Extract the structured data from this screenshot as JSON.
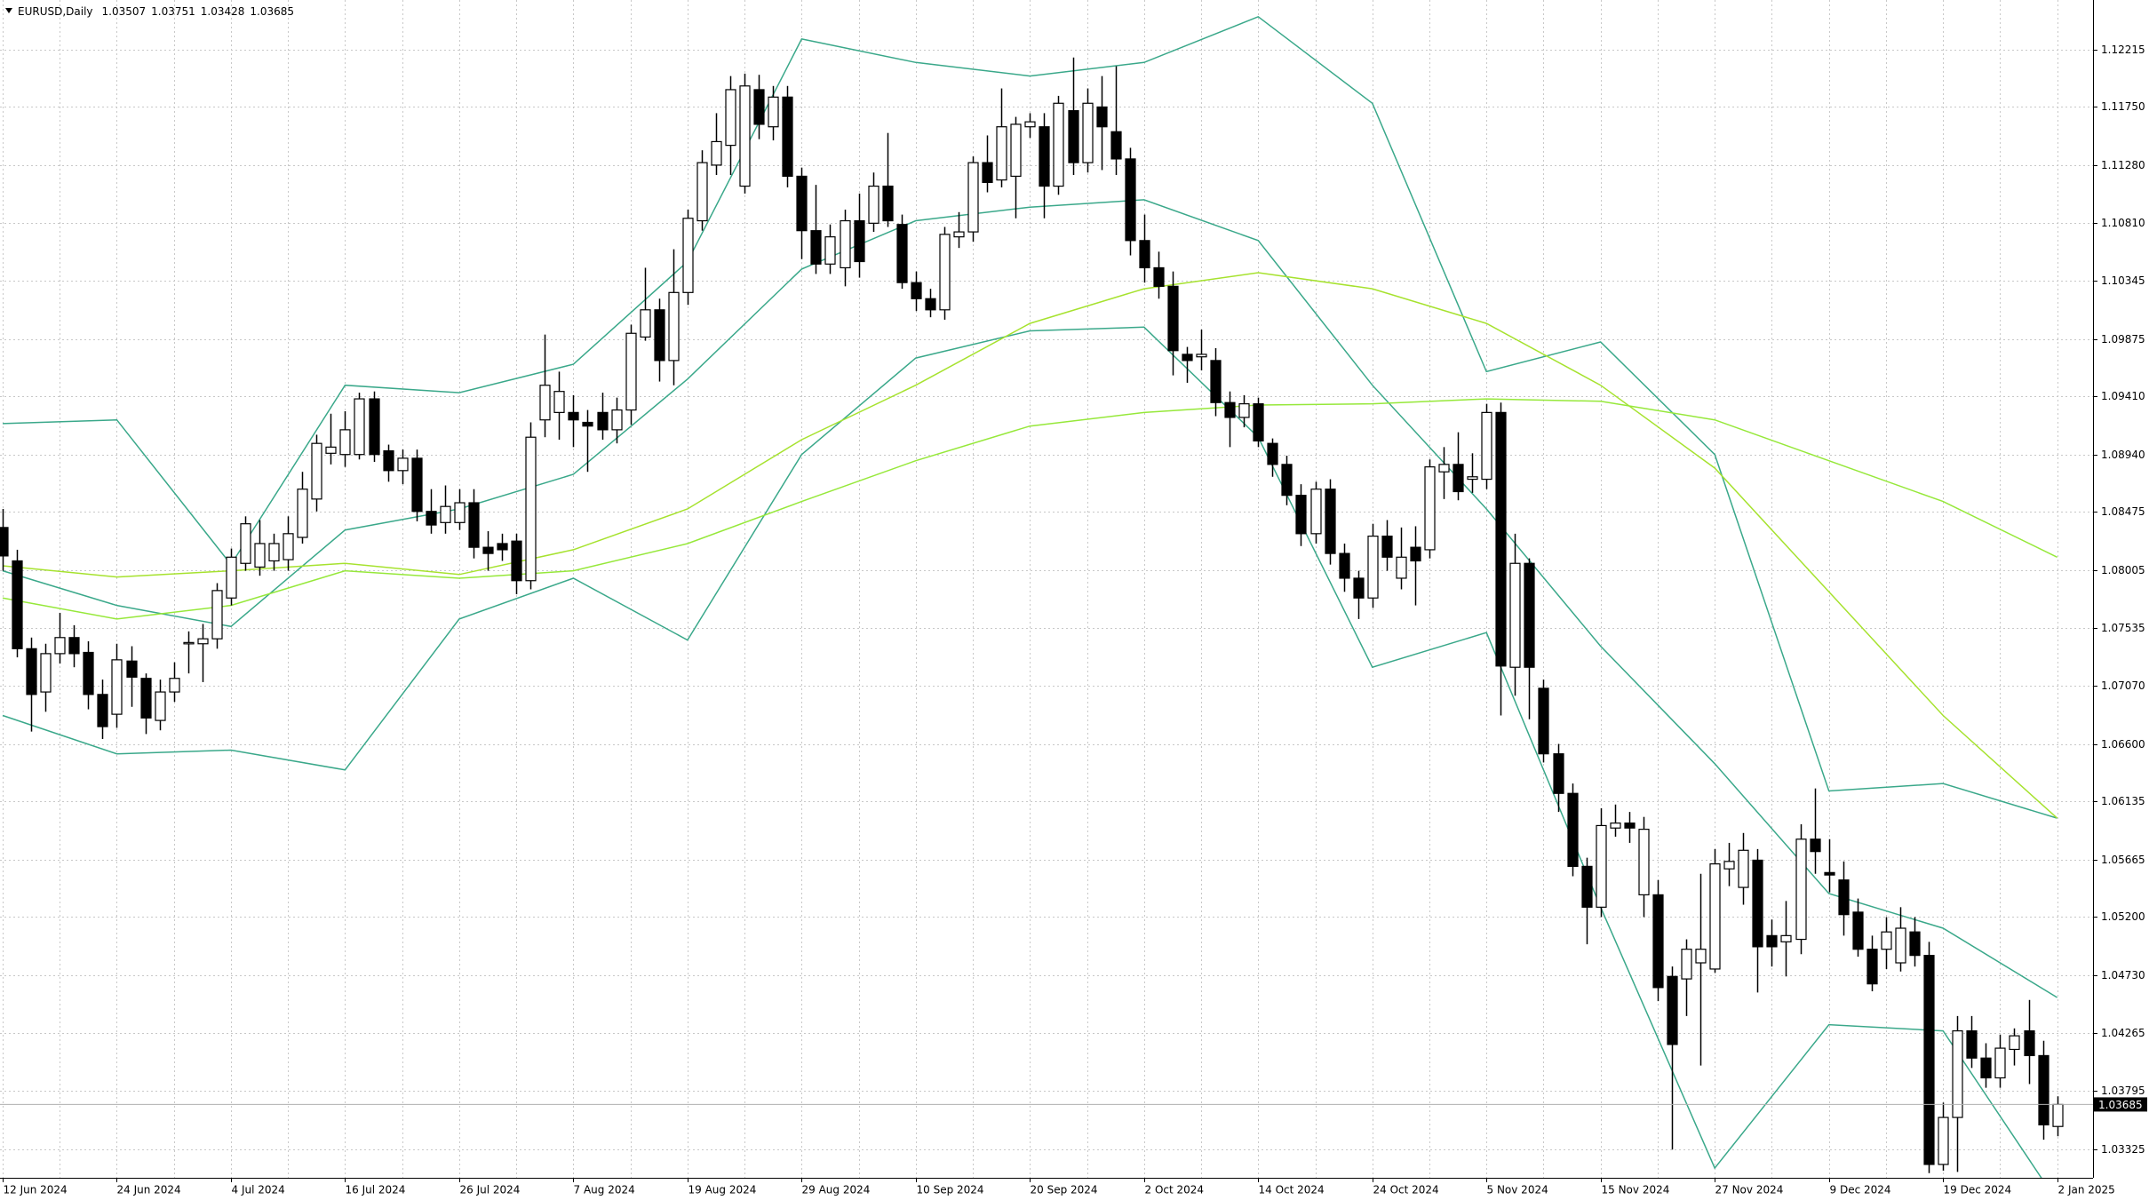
{
  "chart_data": {
    "type": "candlestick",
    "title": "EURUSD,Daily",
    "categories": [
      "12 Jun 2024",
      null,
      null,
      null,
      null,
      null,
      null,
      null,
      "24 Jun 2024",
      null,
      null,
      null,
      null,
      null,
      null,
      null,
      "4 Jul 2024",
      null,
      null,
      null,
      null,
      null,
      null,
      null,
      "16 Jul 2024",
      null,
      null,
      null,
      null,
      null,
      null,
      null,
      "26 Jul 2024",
      null,
      null,
      null,
      null,
      null,
      null,
      null,
      "7 Aug 2024",
      null,
      null,
      null,
      null,
      null,
      null,
      null,
      "19 Aug 2024",
      null,
      null,
      null,
      null,
      null,
      null,
      null,
      "29 Aug 2024",
      null,
      null,
      null,
      null,
      null,
      null,
      null,
      "10 Sep 2024",
      null,
      null,
      null,
      null,
      null,
      null,
      null,
      "20 Sep 2024",
      null,
      null,
      null,
      null,
      null,
      null,
      null,
      "2 Oct 2024",
      null,
      null,
      null,
      null,
      null,
      null,
      null,
      "14 Oct 2024",
      null,
      null,
      null,
      null,
      null,
      null,
      null,
      "24 Oct 2024",
      null,
      null,
      null,
      null,
      null,
      null,
      null,
      "5 Nov 2024",
      null,
      null,
      null,
      null,
      null,
      null,
      null,
      "15 Nov 2024",
      null,
      null,
      null,
      null,
      null,
      null,
      null,
      "27 Nov 2024",
      null,
      null,
      null,
      null,
      null,
      null,
      null,
      "9 Dec 2024",
      null,
      null,
      null,
      null,
      null,
      null,
      null,
      "19 Dec 2024",
      null,
      null,
      null,
      null,
      null,
      null,
      null,
      "2 Jan 2025"
    ],
    "open": [
      1.0835,
      1.0808,
      1.0737,
      1.0702,
      1.0733,
      1.0746,
      1.0734,
      1.07,
      1.0684,
      1.0727,
      1.0713,
      1.0679,
      1.0702,
      1.0741,
      1.0741,
      1.0745,
      1.0778,
      1.0806,
      1.0803,
      1.0808,
      1.0809,
      1.0827,
      1.0858,
      1.0895,
      1.0894,
      1.0894,
      1.0939,
      1.0897,
      1.0881,
      1.0891,
      1.0848,
      1.0839,
      1.0839,
      1.0855,
      1.0819,
      1.0822,
      1.0824,
      1.0792,
      1.0922,
      1.0928,
      1.0928,
      1.092,
      1.0928,
      1.0914,
      1.093,
      1.0989,
      1.1011,
      1.097,
      1.1025,
      1.1083,
      1.1128,
      1.1144,
      1.1111,
      1.1189,
      1.1159,
      1.1183,
      1.1119,
      1.1075,
      1.1048,
      1.1045,
      1.1083,
      1.1081,
      1.1111,
      1.108,
      1.1033,
      1.102,
      1.1011,
      1.107,
      1.1074,
      1.113,
      1.1116,
      1.1119,
      1.1159,
      1.1159,
      1.1111,
      1.1172,
      1.113,
      1.1175,
      1.1155,
      1.1133,
      1.1067,
      1.1045,
      1.103,
      1.0975,
      1.0973,
      1.097,
      1.0936,
      1.0924,
      1.0935,
      1.0903,
      1.0886,
      1.0861,
      1.083,
      1.0866,
      1.0814,
      1.0794,
      1.0778,
      1.0828,
      1.0794,
      1.0819,
      1.0817,
      1.088,
      1.0886,
      1.0874,
      1.0874,
      1.0928,
      1.0722,
      1.0806,
      1.0705,
      1.0652,
      1.062,
      1.0561,
      1.0528,
      1.0592,
      1.0596,
      1.0538,
      1.0538,
      1.0472,
      1.047,
      1.0483,
      1.0478,
      1.0559,
      1.0544,
      1.0566,
      1.0505,
      1.05,
      1.0502,
      1.0583,
      1.0556,
      1.055,
      1.0524,
      1.0494,
      1.0494,
      1.0483,
      1.0508,
      1.0489,
      1.032,
      1.0358,
      1.0428,
      1.0406,
      1.039,
      1.0413,
      1.0428,
      1.0408,
      1.03507
    ],
    "high": [
      1.085,
      1.0817,
      1.0746,
      1.0741,
      1.0766,
      1.0756,
      1.0743,
      1.0712,
      1.0741,
      1.0739,
      1.0717,
      1.0712,
      1.0726,
      1.0751,
      1.0757,
      1.079,
      1.0818,
      1.0844,
      1.0841,
      1.083,
      1.0844,
      1.088,
      1.091,
      1.0927,
      1.0929,
      1.0944,
      1.0945,
      1.0902,
      1.0898,
      1.0898,
      1.0866,
      1.0869,
      1.0866,
      1.0866,
      1.0832,
      1.083,
      1.083,
      1.092,
      1.0991,
      1.0961,
      1.0942,
      1.093,
      1.0944,
      1.094,
      1.0999,
      1.1045,
      1.102,
      1.106,
      1.1092,
      1.114,
      1.117,
      1.12,
      1.1202,
      1.1201,
      1.1192,
      1.1192,
      1.1126,
      1.1112,
      1.108,
      1.1092,
      1.1105,
      1.1122,
      1.1154,
      1.1088,
      1.1042,
      1.1028,
      1.1078,
      1.109,
      1.1135,
      1.1152,
      1.119,
      1.1167,
      1.117,
      1.117,
      1.1184,
      1.1215,
      1.119,
      1.12,
      1.1208,
      1.1142,
      1.1088,
      1.1058,
      1.1042,
      1.0981,
      1.0995,
      1.098,
      1.0945,
      1.0942,
      1.094,
      1.0907,
      1.0893,
      1.087,
      1.0872,
      1.0874,
      1.0822,
      1.08,
      1.0838,
      1.0841,
      1.0835,
      1.0836,
      1.089,
      1.09,
      1.0912,
      1.0895,
      1.0935,
      1.0936,
      1.083,
      1.081,
      1.0712,
      1.066,
      1.0628,
      1.0568,
      1.0608,
      1.0611,
      1.0605,
      1.0601,
      1.055,
      1.048,
      1.0502,
      1.0555,
      1.0575,
      1.058,
      1.0588,
      1.0575,
      1.0518,
      1.0533,
      1.0595,
      1.0624,
      1.0583,
      1.0565,
      1.0535,
      1.0505,
      1.052,
      1.0528,
      1.052,
      1.05,
      1.037,
      1.044,
      1.044,
      1.0418,
      1.0425,
      1.043,
      1.0453,
      1.042,
      1.03751
    ],
    "low": [
      1.08,
      1.073,
      1.067,
      1.0686,
      1.0725,
      1.0722,
      1.0688,
      1.0664,
      1.0673,
      1.069,
      1.0668,
      1.0671,
      1.0694,
      1.0717,
      1.071,
      1.0737,
      1.0772,
      1.08,
      1.0796,
      1.08,
      1.08,
      1.0822,
      1.0848,
      1.0886,
      1.0884,
      1.089,
      1.0888,
      1.0872,
      1.087,
      1.084,
      1.083,
      1.083,
      1.0833,
      1.081,
      1.08,
      1.0808,
      1.0781,
      1.0785,
      1.0908,
      1.0906,
      1.09,
      1.088,
      1.0906,
      1.0903,
      1.0918,
      1.0986,
      1.0953,
      1.095,
      1.1015,
      1.1075,
      1.112,
      1.112,
      1.1105,
      1.1149,
      1.1148,
      1.111,
      1.1052,
      1.104,
      1.104,
      1.103,
      1.1037,
      1.1074,
      1.1078,
      1.1028,
      1.101,
      1.1005,
      1.1003,
      1.1061,
      1.1066,
      1.1106,
      1.111,
      1.1085,
      1.115,
      1.1085,
      1.1104,
      1.112,
      1.1122,
      1.1124,
      1.112,
      1.1055,
      1.1033,
      1.102,
      1.0958,
      1.0952,
      1.0962,
      1.0925,
      1.09,
      1.0916,
      1.09,
      1.0876,
      1.0853,
      1.082,
      1.0822,
      1.0805,
      1.0783,
      1.0761,
      1.077,
      1.08,
      1.0785,
      1.0772,
      1.081,
      1.0858,
      1.0857,
      1.0863,
      1.0866,
      1.0683,
      1.0699,
      1.068,
      1.0645,
      1.0605,
      1.0553,
      1.0498,
      1.052,
      1.0585,
      1.058,
      1.052,
      1.0452,
      1.0332,
      1.044,
      1.04,
      1.0475,
      1.0545,
      1.053,
      1.0459,
      1.048,
      1.0472,
      1.049,
      1.0555,
      1.054,
      1.0505,
      1.0488,
      1.046,
      1.0478,
      1.0476,
      1.048,
      1.0313,
      1.0315,
      1.0314,
      1.0398,
      1.0382,
      1.0382,
      1.04,
      1.0385,
      1.034,
      1.03428
    ],
    "close": [
      1.0812,
      1.0737,
      1.07,
      1.0733,
      1.0746,
      1.0733,
      1.07,
      1.0674,
      1.0728,
      1.0714,
      1.0681,
      1.0702,
      1.0713,
      1.0742,
      1.0745,
      1.0784,
      1.0811,
      1.0838,
      1.0822,
      1.0822,
      1.083,
      1.0866,
      1.0903,
      1.09,
      1.0914,
      1.0939,
      1.0894,
      1.0881,
      1.0891,
      1.0848,
      1.0837,
      1.0852,
      1.0855,
      1.0819,
      1.0814,
      1.0817,
      1.0792,
      1.0908,
      1.095,
      1.0945,
      1.0922,
      1.0917,
      1.0914,
      1.093,
      1.0992,
      1.1011,
      1.097,
      1.1025,
      1.1085,
      1.113,
      1.1147,
      1.1189,
      1.1192,
      1.1161,
      1.1183,
      1.1119,
      1.1075,
      1.1048,
      1.107,
      1.1083,
      1.105,
      1.1111,
      1.1083,
      1.1033,
      1.102,
      1.1011,
      1.1072,
      1.1074,
      1.113,
      1.1114,
      1.1159,
      1.1161,
      1.1163,
      1.1111,
      1.1178,
      1.113,
      1.1178,
      1.1159,
      1.1133,
      1.1067,
      1.1045,
      1.103,
      1.0978,
      1.097,
      1.0975,
      1.0936,
      1.0924,
      1.0935,
      1.0905,
      1.0886,
      1.0861,
      1.083,
      1.0866,
      1.0814,
      1.0794,
      1.0778,
      1.0828,
      1.0811,
      1.0811,
      1.0808,
      1.0884,
      1.0886,
      1.0864,
      1.0876,
      1.0928,
      1.0723,
      1.0806,
      1.0722,
      1.0652,
      1.062,
      1.0561,
      1.0528,
      1.0594,
      1.0596,
      1.0592,
      1.0591,
      1.0463,
      1.0417,
      1.0494,
      1.0494,
      1.0563,
      1.0565,
      1.0574,
      1.0496,
      1.0496,
      1.0505,
      1.0583,
      1.0573,
      1.0554,
      1.0522,
      1.0494,
      1.0466,
      1.0508,
      1.0511,
      1.0489,
      1.032,
      1.0358,
      1.0428,
      1.0406,
      1.039,
      1.0414,
      1.0424,
      1.0408,
      1.0352,
      1.03685
    ],
    "up_color": "#ffffff",
    "down_color": "#000000",
    "ylim": [
      1.03092,
      1.12615
    ],
    "yticks": [
      1.12215,
      {
        "value": 1.1175,
        "label": "1.11750"
      },
      {
        "value": 1.1128,
        "label": "1.11280"
      },
      {
        "value": 1.1081,
        "label": "1.10810"
      },
      1.10345,
      1.09875,
      {
        "value": 1.0941,
        "label": "1.09410"
      },
      {
        "value": 1.0894,
        "label": "1.08940"
      },
      1.08475,
      1.08005,
      1.07535,
      {
        "value": 1.0707,
        "label": "1.07070"
      },
      {
        "value": 1.066,
        "label": "1.06600"
      },
      1.06135,
      1.05665,
      {
        "value": 1.052,
        "label": "1.05200"
      },
      {
        "value": 1.0473,
        "label": "1.04730"
      },
      1.04265,
      1.03795,
      1.03325
    ],
    "grid": true,
    "overlays": [
      {
        "color": "#3aa88a",
        "x": [
          0,
          8,
          16,
          24,
          32,
          40,
          48,
          56,
          64,
          72,
          80,
          88,
          96,
          104,
          112,
          120,
          128,
          136,
          144
        ],
        "values": [
          1.0919,
          1.0922,
          1.0805,
          1.095,
          1.0944,
          1.0967,
          1.105,
          1.123,
          1.1211,
          1.12,
          1.1211,
          1.1248,
          1.1178,
          1.0961,
          1.0985,
          1.0894,
          1.0622,
          1.0628,
          1.06
        ]
      },
      {
        "color": "#3aa88a",
        "x": [
          0,
          8,
          16,
          24,
          32,
          40,
          48,
          56,
          64,
          72,
          80,
          88,
          96,
          104,
          112,
          120,
          128,
          136,
          144
        ],
        "values": [
          1.08,
          1.0772,
          1.0755,
          1.0833,
          1.085,
          1.0878,
          1.0955,
          1.1044,
          1.1083,
          1.1094,
          1.11,
          1.1067,
          1.095,
          1.085,
          1.0739,
          1.0644,
          1.0539,
          1.0511,
          1.0455
        ]
      },
      {
        "color": "#3aa88a",
        "x": [
          0,
          8,
          16,
          24,
          32,
          40,
          48,
          56,
          64,
          72,
          80,
          88,
          96,
          104,
          112,
          120,
          128,
          136,
          144
        ],
        "values": [
          1.0683,
          1.0652,
          1.0655,
          1.0639,
          1.0761,
          1.0794,
          1.0744,
          1.0894,
          1.0972,
          1.0994,
          1.0997,
          1.0908,
          1.0722,
          1.075,
          1.0528,
          1.0317,
          1.0433,
          1.0428,
          1.029
        ]
      },
      {
        "color": "#a6e22e",
        "x": [
          0,
          8,
          16,
          24,
          32,
          40,
          48,
          56,
          64,
          72,
          80,
          88,
          96,
          104,
          112,
          120,
          128,
          136,
          144
        ],
        "values": [
          1.0804,
          1.0795,
          1.08,
          1.0806,
          1.0797,
          1.0817,
          1.085,
          1.0906,
          1.095,
          1.1,
          1.1028,
          1.1041,
          1.1028,
          1.1,
          1.095,
          1.0883,
          1.0783,
          1.0683,
          1.06
        ]
      },
      {
        "color": "#96e83a",
        "x": [
          0,
          8,
          16,
          24,
          32,
          40,
          48,
          56,
          64,
          72,
          80,
          88,
          96,
          104,
          112,
          120,
          128,
          136,
          144
        ],
        "values": [
          1.0778,
          1.0761,
          1.0772,
          1.08,
          1.0794,
          1.08,
          1.0822,
          1.0856,
          1.0889,
          1.0917,
          1.0928,
          1.0934,
          1.0935,
          1.0939,
          1.0937,
          1.0922,
          1.0889,
          1.0856,
          1.0811
        ]
      }
    ]
  }
}
